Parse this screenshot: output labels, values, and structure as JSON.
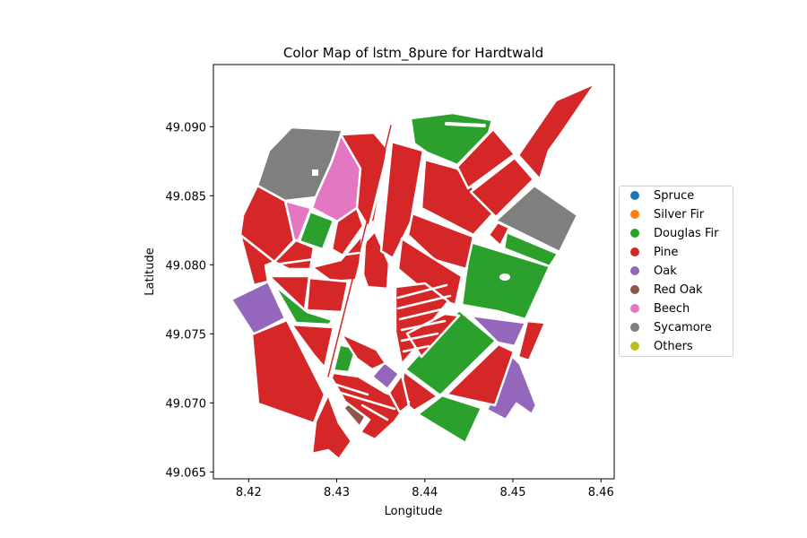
{
  "chart_data": {
    "type": "map",
    "title": "Color Map of lstm_8pure for Hardtwald",
    "xlabel": "Longitude",
    "ylabel": "Latitude",
    "xlim": [
      8.416,
      8.4615
    ],
    "ylim": [
      49.0645,
      49.0945
    ],
    "xticks": [
      "8.42",
      "8.43",
      "8.44",
      "8.45",
      "8.46"
    ],
    "yticks": [
      "49.065",
      "49.070",
      "49.075",
      "49.080",
      "49.085",
      "49.090"
    ],
    "legend_position": "right",
    "legend": [
      {
        "name": "Spruce",
        "color": "#1f77b4"
      },
      {
        "name": "Silver Fir",
        "color": "#ff7f0e"
      },
      {
        "name": "Douglas Fir",
        "color": "#2ca02c"
      },
      {
        "name": "Pine",
        "color": "#d62728"
      },
      {
        "name": "Oak",
        "color": "#9467bd"
      },
      {
        "name": "Red Oak",
        "color": "#8c564b"
      },
      {
        "name": "Beech",
        "color": "#e377c2"
      },
      {
        "name": "Sycamore",
        "color": "#7f7f7f"
      },
      {
        "name": "Others",
        "color": "#bcbd22"
      }
    ]
  }
}
